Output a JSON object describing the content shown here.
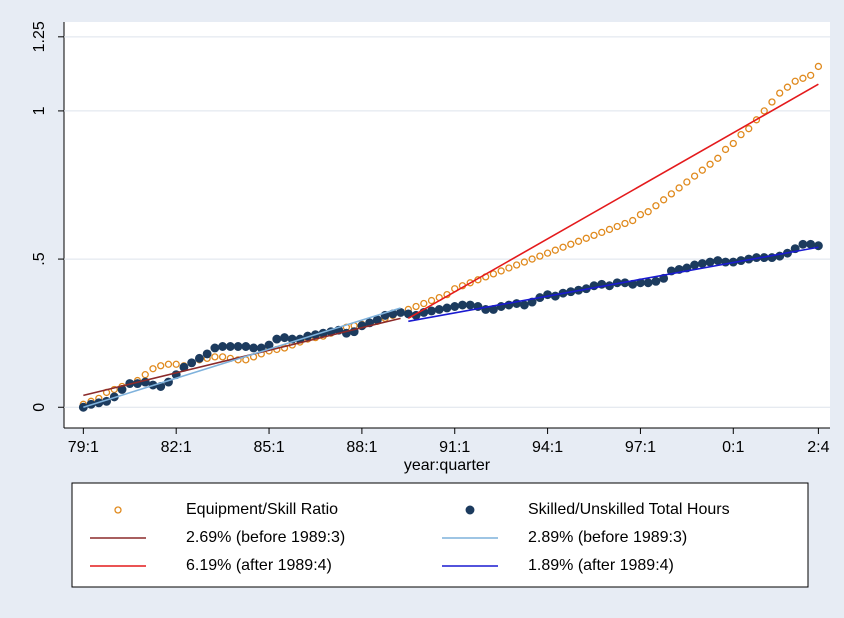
{
  "chart_data": {
    "type": "scatter",
    "x_label": "year:quarter",
    "xlim": [
      -2.5,
      96.5
    ],
    "ylim": [
      -0.07,
      1.3
    ],
    "xticks": [
      {
        "value": 0,
        "label": "79:1"
      },
      {
        "value": 12,
        "label": "82:1"
      },
      {
        "value": 24,
        "label": "85:1"
      },
      {
        "value": 36,
        "label": "88:1"
      },
      {
        "value": 48,
        "label": "91:1"
      },
      {
        "value": 60,
        "label": "94:1"
      },
      {
        "value": 72,
        "label": "97:1"
      },
      {
        "value": 84,
        "label": "0:1"
      },
      {
        "value": 95,
        "label": "2:4"
      }
    ],
    "yticks": [
      0,
      {
        "value": 0.5,
        "label": ".5"
      },
      1,
      1.25
    ],
    "grid": true,
    "series": [
      {
        "name": "Equipment/Skill Ratio",
        "color": "#e08a1e",
        "style": "hollow",
        "x": [
          0,
          1,
          2,
          3,
          4,
          5,
          6,
          7,
          8,
          9,
          10,
          11,
          12,
          13,
          14,
          15,
          16,
          17,
          18,
          19,
          20,
          21,
          22,
          23,
          24,
          25,
          26,
          27,
          28,
          29,
          30,
          31,
          32,
          33,
          34,
          35,
          36,
          37,
          38,
          39,
          40,
          41,
          42,
          43,
          44,
          45,
          46,
          47,
          48,
          49,
          50,
          51,
          52,
          53,
          54,
          55,
          56,
          57,
          58,
          59,
          60,
          61,
          62,
          63,
          64,
          65,
          66,
          67,
          68,
          69,
          70,
          71,
          72,
          73,
          74,
          75,
          76,
          77,
          78,
          79,
          80,
          81,
          82,
          83,
          84,
          85,
          86,
          87,
          88,
          89,
          90,
          91,
          92,
          93,
          94,
          95
        ],
        "values": [
          0.01,
          0.02,
          0.03,
          0.05,
          0.06,
          0.07,
          0.08,
          0.09,
          0.11,
          0.13,
          0.14,
          0.145,
          0.145,
          0.14,
          0.15,
          0.16,
          0.165,
          0.17,
          0.17,
          0.165,
          0.16,
          0.16,
          0.17,
          0.18,
          0.19,
          0.195,
          0.2,
          0.21,
          0.22,
          0.23,
          0.235,
          0.24,
          0.25,
          0.26,
          0.27,
          0.275,
          0.28,
          0.285,
          0.29,
          0.3,
          0.31,
          0.32,
          0.33,
          0.34,
          0.35,
          0.36,
          0.37,
          0.38,
          0.4,
          0.41,
          0.42,
          0.43,
          0.44,
          0.45,
          0.46,
          0.47,
          0.48,
          0.49,
          0.5,
          0.51,
          0.52,
          0.53,
          0.54,
          0.55,
          0.56,
          0.57,
          0.58,
          0.59,
          0.6,
          0.61,
          0.62,
          0.63,
          0.65,
          0.66,
          0.68,
          0.7,
          0.72,
          0.74,
          0.76,
          0.78,
          0.8,
          0.82,
          0.84,
          0.87,
          0.89,
          0.92,
          0.94,
          0.97,
          1.0,
          1.03,
          1.06,
          1.08,
          1.1,
          1.11,
          1.12,
          1.15
        ]
      },
      {
        "name": "Skilled/Unskilled Total Hours",
        "color": "#1c3b5e",
        "style": "filled",
        "x": [
          0,
          1,
          2,
          3,
          4,
          5,
          6,
          7,
          8,
          9,
          10,
          11,
          12,
          13,
          14,
          15,
          16,
          17,
          18,
          19,
          20,
          21,
          22,
          23,
          24,
          25,
          26,
          27,
          28,
          29,
          30,
          31,
          32,
          33,
          34,
          35,
          36,
          37,
          38,
          39,
          40,
          41,
          42,
          43,
          44,
          45,
          46,
          47,
          48,
          49,
          50,
          51,
          52,
          53,
          54,
          55,
          56,
          57,
          58,
          59,
          60,
          61,
          62,
          63,
          64,
          65,
          66,
          67,
          68,
          69,
          70,
          71,
          72,
          73,
          74,
          75,
          76,
          77,
          78,
          79,
          80,
          81,
          82,
          83,
          84,
          85,
          86,
          87,
          88,
          89,
          90,
          91,
          92,
          93,
          94,
          95
        ],
        "values": [
          0.0,
          0.01,
          0.015,
          0.02,
          0.035,
          0.06,
          0.08,
          0.08,
          0.085,
          0.075,
          0.07,
          0.085,
          0.11,
          0.135,
          0.15,
          0.165,
          0.18,
          0.2,
          0.205,
          0.205,
          0.205,
          0.205,
          0.2,
          0.2,
          0.21,
          0.23,
          0.235,
          0.23,
          0.23,
          0.24,
          0.245,
          0.25,
          0.255,
          0.26,
          0.25,
          0.255,
          0.275,
          0.285,
          0.295,
          0.31,
          0.315,
          0.32,
          0.315,
          0.31,
          0.32,
          0.325,
          0.33,
          0.335,
          0.34,
          0.345,
          0.345,
          0.34,
          0.33,
          0.33,
          0.34,
          0.345,
          0.35,
          0.345,
          0.355,
          0.37,
          0.38,
          0.375,
          0.385,
          0.39,
          0.395,
          0.4,
          0.41,
          0.415,
          0.41,
          0.42,
          0.42,
          0.415,
          0.42,
          0.42,
          0.425,
          0.435,
          0.46,
          0.465,
          0.47,
          0.48,
          0.485,
          0.49,
          0.495,
          0.49,
          0.49,
          0.495,
          0.5,
          0.505,
          0.505,
          0.505,
          0.51,
          0.52,
          0.535,
          0.55,
          0.55,
          0.545
        ]
      },
      {
        "name": "2.69% (before 1989:3)",
        "color": "#8b2a2a",
        "style": "line",
        "x": [
          0,
          41
        ],
        "values": [
          0.04,
          0.3
        ]
      },
      {
        "name": "2.89% (before 1989:3)",
        "color": "#7fb2dc",
        "style": "line",
        "x": [
          0,
          41
        ],
        "values": [
          0.0,
          0.335
        ]
      },
      {
        "name": "6.19% (after 1989:4)",
        "color": "#e41a1c",
        "style": "line",
        "x": [
          42,
          95
        ],
        "values": [
          0.3,
          1.09
        ]
      },
      {
        "name": "1.89% (after 1989:4)",
        "color": "#1a1ad0",
        "style": "line",
        "x": [
          42,
          95
        ],
        "values": [
          0.29,
          0.54
        ]
      }
    ]
  }
}
